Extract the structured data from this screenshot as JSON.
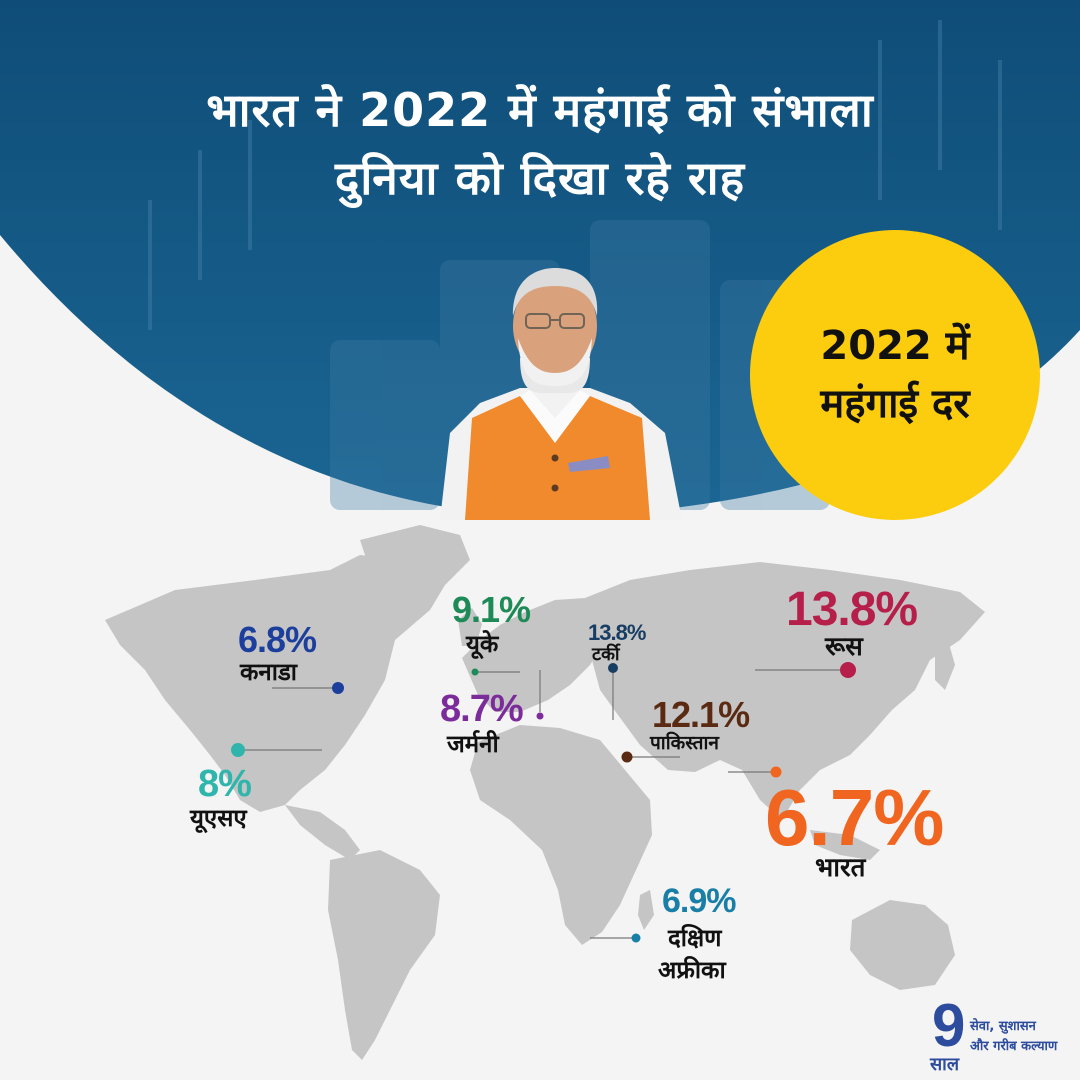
{
  "title": {
    "line1": "भारत ने 2022 में महंगाई को संभाला",
    "line2": "दुनिया को दिखा रहे राह"
  },
  "badge": {
    "line1": "2022 में",
    "line2": "महंगाई दर"
  },
  "countries": [
    {
      "id": "canada",
      "name": "कनाडा",
      "value": "6.8%",
      "color": "#1c3e9c"
    },
    {
      "id": "usa",
      "name": "यूएसए",
      "value": "8%",
      "color": "#2fb5ac"
    },
    {
      "id": "uk",
      "name": "यूके",
      "value": "9.1%",
      "color": "#1e8a58"
    },
    {
      "id": "germany",
      "name": "जर्मनी",
      "value": "8.7%",
      "color": "#7b2c9a"
    },
    {
      "id": "turkey",
      "name": "टर्की",
      "value": "13.8%",
      "color": "#173d62"
    },
    {
      "id": "pakistan",
      "name": "पाकिस्तान",
      "value": "12.1%",
      "color": "#5a2a12"
    },
    {
      "id": "russia",
      "name": "रूस",
      "value": "13.8%",
      "color": "#b51f4a"
    },
    {
      "id": "india",
      "name": "भारत",
      "value": "6.7%",
      "color": "#f0651f"
    },
    {
      "id": "south_africa",
      "name_line1": "दक्षिण",
      "name_line2": "अफ्रीका",
      "value": "6.9%",
      "color": "#1a7fa6"
    }
  ],
  "logo": {
    "number": "9",
    "word": "साल",
    "tagline1": "सेवा, सुशासन",
    "tagline2": "और गरीब कल्याण"
  },
  "colors": {
    "header_blue": "#14567f",
    "badge_yellow": "#fccd0e",
    "map_gray": "#c5c5c5"
  }
}
